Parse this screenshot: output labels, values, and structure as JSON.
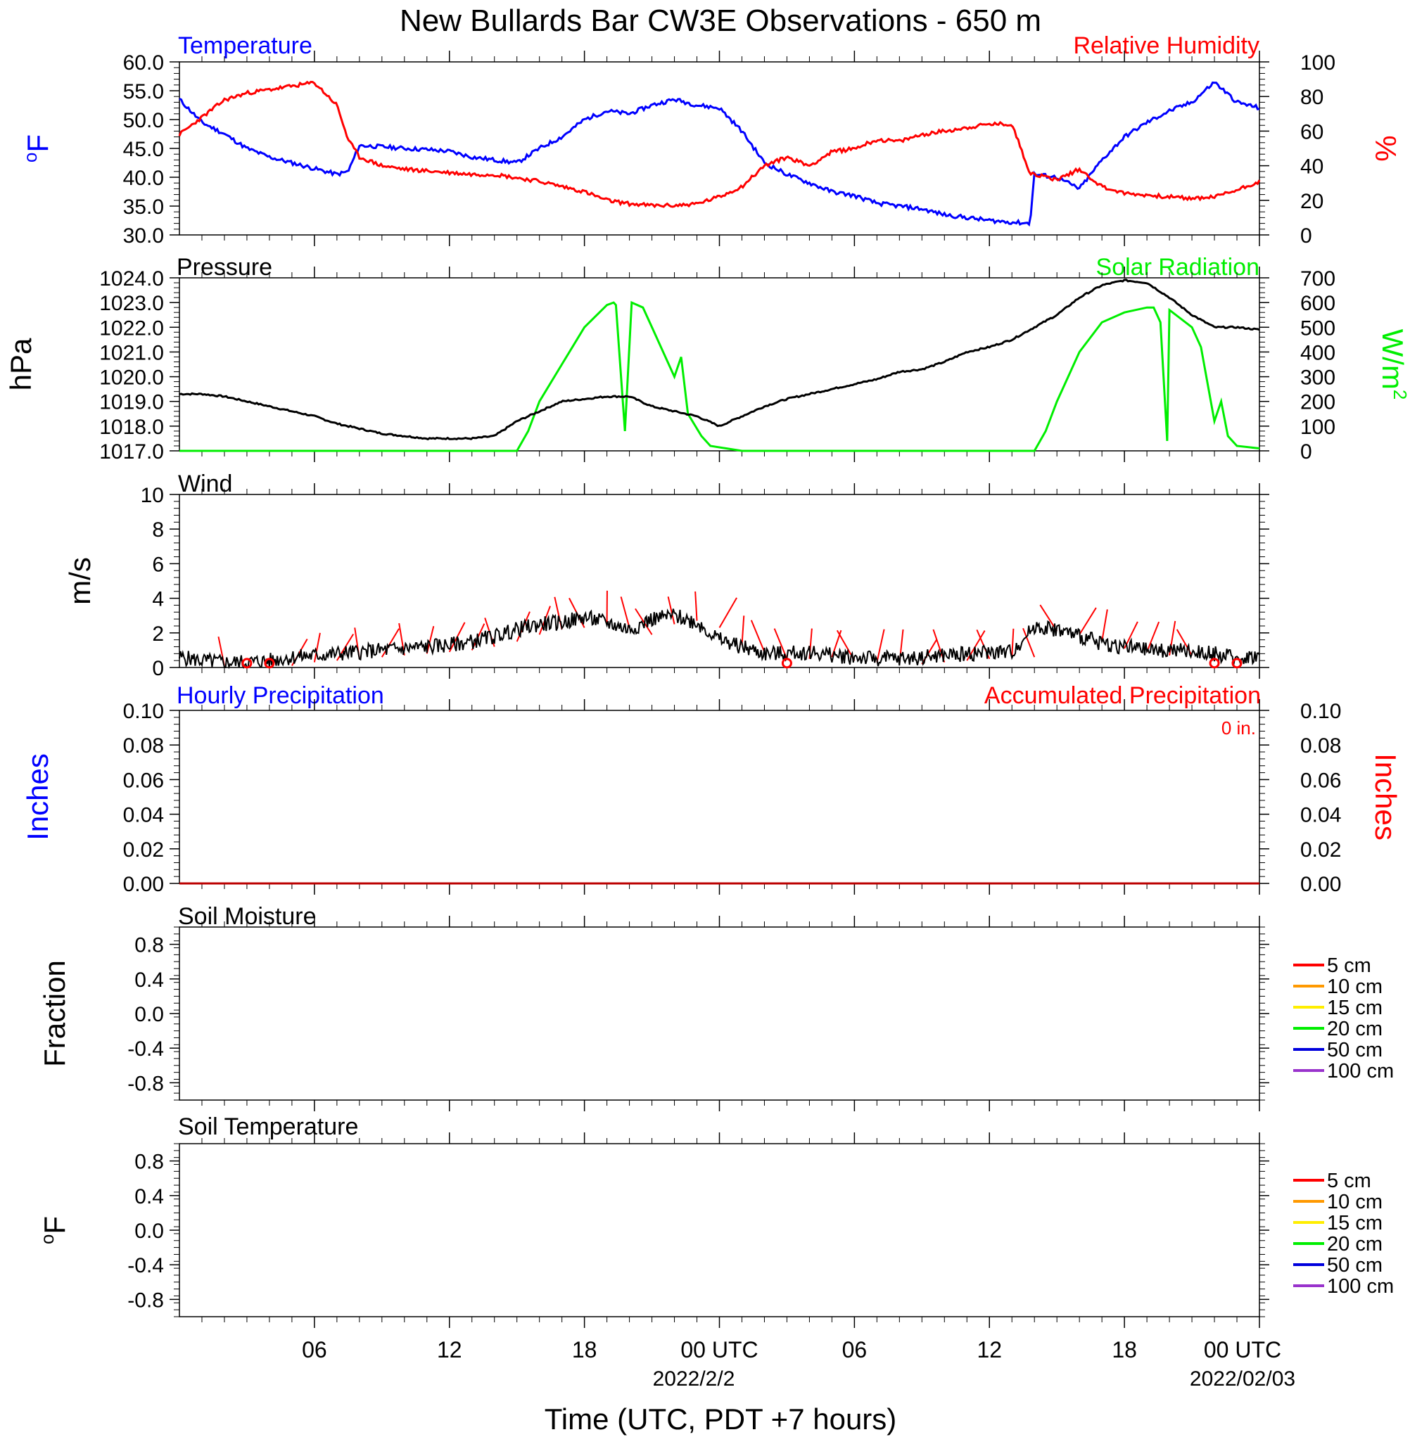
{
  "title": "New Bullards Bar CW3E Observations - 650 m",
  "x_axis": {
    "label": "Time (UTC, PDT +7 hours)",
    "ticks": [
      "06",
      "12",
      "18",
      "00 UTC",
      "06",
      "12",
      "18",
      "00 UTC"
    ],
    "dates": [
      "2022/2/2",
      "2022/02/03"
    ]
  },
  "colors": {
    "temperature": "#0000ff",
    "humidity": "#ff0000",
    "pressure": "#000000",
    "solar": "#00ee00",
    "wind": "#000000",
    "wind_barb": "#ff0000",
    "hourly_precip": "#0000ff",
    "accum_precip": "#ff0000",
    "soil_legend": [
      "#ff0000",
      "#ff9900",
      "#ffee00",
      "#00ee00",
      "#0000dd",
      "#9933cc"
    ]
  },
  "chart_data": [
    {
      "type": "line",
      "name": "temperature-humidity",
      "left_title": "Temperature",
      "right_title": "Relative Humidity",
      "ylabel_left": "oF",
      "ylabel_right": "%",
      "ylim_left": [
        30,
        60
      ],
      "ylim_right": [
        0,
        100
      ],
      "yticks_left": [
        "30.0",
        "35.0",
        "40.0",
        "45.0",
        "50.0",
        "55.0",
        "60.0"
      ],
      "yticks_right": [
        "0",
        "20",
        "40",
        "60",
        "80",
        "100"
      ],
      "x_hours": [
        0,
        1,
        2,
        3,
        4,
        5,
        6,
        7,
        7.5,
        8,
        9,
        10,
        11,
        12,
        13,
        14,
        15,
        16,
        17,
        18,
        19,
        20,
        21,
        22,
        23,
        24,
        25,
        26,
        27,
        28,
        29,
        30,
        31,
        32,
        33,
        34,
        35,
        36,
        37,
        37.8,
        38,
        39,
        40,
        41,
        42,
        43,
        44,
        45,
        46,
        47,
        48
      ],
      "series": [
        {
          "name": "Temperature",
          "axis": "left",
          "values": [
            53.5,
            49.5,
            47.5,
            45,
            43.5,
            42.5,
            41.5,
            40.5,
            41,
            45.5,
            45.3,
            45,
            44.8,
            44.5,
            43.5,
            43,
            42.5,
            45,
            47,
            50,
            51.5,
            51,
            52.5,
            53.5,
            52.5,
            52,
            48,
            42.5,
            40.5,
            39,
            37.5,
            36.8,
            35.5,
            35,
            34.5,
            33.5,
            33,
            32.5,
            32.2,
            32,
            40.5,
            40,
            38,
            43,
            47,
            49.5,
            51.5,
            53,
            56.5,
            53,
            52
          ]
        },
        {
          "name": "Relative Humidity",
          "axis": "right",
          "values": [
            58,
            68,
            78,
            82,
            84,
            86,
            88,
            75,
            55,
            45,
            40,
            38,
            37,
            36,
            35,
            35,
            33,
            31,
            28,
            25,
            20,
            18,
            17,
            17,
            18,
            22,
            28,
            40,
            45,
            40,
            48,
            50,
            55,
            54,
            58,
            60,
            62,
            64,
            64,
            36,
            35,
            32,
            38,
            28,
            24,
            23,
            22,
            21,
            22,
            26,
            31
          ]
        }
      ]
    },
    {
      "type": "line",
      "name": "pressure-solar",
      "left_title": "Pressure",
      "right_title": "Solar Radiation",
      "ylabel_left": "hPa",
      "ylabel_right": "W/m2",
      "ylim_left": [
        1017,
        1024
      ],
      "ylim_right": [
        0,
        700
      ],
      "yticks_left": [
        "1017.0",
        "1018.0",
        "1019.0",
        "1020.0",
        "1021.0",
        "1022.0",
        "1023.0",
        "1024.0"
      ],
      "yticks_right": [
        "0",
        "100",
        "200",
        "300",
        "400",
        "500",
        "600",
        "700"
      ],
      "pressure": {
        "x_hours": [
          0,
          1,
          2,
          3,
          4,
          5,
          6,
          7,
          8,
          9,
          10,
          11,
          12,
          13,
          14,
          15,
          16,
          17,
          18,
          19,
          20,
          21,
          22,
          23,
          24,
          25,
          26,
          27,
          28,
          29,
          30,
          31,
          32,
          33,
          34,
          35,
          36,
          37,
          38,
          39,
          40,
          41,
          42,
          43,
          44,
          45,
          46,
          47,
          48
        ],
        "values": [
          1019.3,
          1019.3,
          1019.2,
          1019,
          1018.8,
          1018.6,
          1018.4,
          1018.1,
          1017.9,
          1017.7,
          1017.6,
          1017.5,
          1017.5,
          1017.5,
          1017.6,
          1018.2,
          1018.6,
          1019,
          1019.1,
          1019.2,
          1019.2,
          1018.8,
          1018.6,
          1018.4,
          1018.0,
          1018.4,
          1018.8,
          1019.1,
          1019.3,
          1019.5,
          1019.7,
          1019.9,
          1020.2,
          1020.3,
          1020.6,
          1021,
          1021.2,
          1021.5,
          1022,
          1022.5,
          1023.2,
          1023.7,
          1023.9,
          1023.8,
          1023.2,
          1022.5,
          1022.0,
          1022,
          1021.9
        ]
      },
      "solar": {
        "x_hours": [
          0,
          1,
          14,
          15,
          15.5,
          16,
          17,
          18,
          19,
          19.3,
          19.4,
          19.8,
          20.1,
          20.6,
          21,
          22,
          22.3,
          22.6,
          23.2,
          23.6,
          24.3,
          25,
          38,
          38.5,
          39,
          40,
          41,
          42,
          43,
          43.3,
          43.6,
          43.9,
          44,
          45,
          45.4,
          46,
          46.3,
          46.6,
          47,
          48
        ],
        "values": [
          0,
          0,
          0,
          0,
          80,
          200,
          350,
          500,
          590,
          600,
          590,
          80,
          600,
          580,
          500,
          300,
          380,
          150,
          60,
          20,
          10,
          0,
          0,
          80,
          200,
          400,
          520,
          560,
          580,
          580,
          520,
          40,
          570,
          500,
          420,
          120,
          200,
          60,
          20,
          10
        ]
      }
    },
    {
      "type": "line",
      "name": "wind",
      "left_title": "Wind",
      "ylabel_left": "m/s",
      "ylim_left": [
        0,
        10
      ],
      "yticks_left": [
        "0",
        "2",
        "4",
        "6",
        "8",
        "10"
      ],
      "x_hours": [
        0,
        1,
        2,
        3,
        4,
        5,
        6,
        7,
        8,
        9,
        10,
        11,
        12,
        13,
        14,
        15,
        16,
        17,
        18,
        19,
        20,
        21,
        22,
        23,
        24,
        25,
        26,
        27,
        28,
        29,
        30,
        31,
        32,
        33,
        34,
        35,
        36,
        37,
        38,
        39,
        40,
        41,
        42,
        43,
        44,
        45,
        46,
        47,
        48
      ],
      "values": [
        0.6,
        0.4,
        0.3,
        0.3,
        0.4,
        0.6,
        0.7,
        0.8,
        0.9,
        1.0,
        1.1,
        1.2,
        1.3,
        1.5,
        1.8,
        2.2,
        2.5,
        2.6,
        2.9,
        2.6,
        2.2,
        2.8,
        3.0,
        2.6,
        1.6,
        1.2,
        0.8,
        0.8,
        0.9,
        0.7,
        0.6,
        0.5,
        0.5,
        0.6,
        0.7,
        0.8,
        0.9,
        0.9,
        2.4,
        2.2,
        1.8,
        1.4,
        1.2,
        1.0,
        1.0,
        0.9,
        0.8,
        0.5,
        0.7
      ],
      "calm_markers_hours": [
        3,
        4,
        27,
        46,
        47
      ],
      "barb_hours": [
        2,
        5,
        6,
        7,
        8,
        9,
        10,
        11,
        12,
        13,
        14,
        15,
        16,
        17,
        18,
        19,
        20,
        21,
        22,
        23,
        24,
        25,
        26,
        27,
        28,
        29,
        30,
        31,
        32,
        33,
        34,
        35,
        36,
        37,
        38,
        39,
        40,
        41,
        42,
        43,
        44,
        45
      ]
    },
    {
      "type": "line",
      "name": "precipitation",
      "left_title": "Hourly Precipitation",
      "right_title": "Accumulated Precipitation",
      "annotation": "0 in.",
      "ylabel_left": "Inches",
      "ylabel_right": "Inches",
      "ylim_left": [
        0,
        0.1
      ],
      "ylim_right": [
        0,
        0.1
      ],
      "yticks_left": [
        "0.00",
        "0.02",
        "0.04",
        "0.06",
        "0.08",
        "0.10"
      ],
      "yticks_right": [
        "0.00",
        "0.02",
        "0.04",
        "0.06",
        "0.08",
        "0.10"
      ],
      "x_hours": [
        0,
        48
      ],
      "series": [
        {
          "name": "Hourly Precipitation",
          "axis": "left",
          "values": [
            0,
            0
          ]
        },
        {
          "name": "Accumulated Precipitation",
          "axis": "right",
          "values": [
            0,
            0
          ]
        }
      ]
    },
    {
      "type": "line",
      "name": "soil-moisture",
      "left_title": "Soil Moisture",
      "ylabel_left": "Fraction",
      "ylim_left": [
        -1,
        1
      ],
      "yticks_left": [
        "-0.8",
        "-0.4",
        "0.0",
        "0.4",
        "0.8"
      ],
      "legend": [
        "5 cm",
        "10 cm",
        "15 cm",
        "20 cm",
        "50 cm",
        "100 cm"
      ],
      "legend_position": "right"
    },
    {
      "type": "line",
      "name": "soil-temperature",
      "left_title": "Soil Temperature",
      "ylabel_left": "oF",
      "ylim_left": [
        -1,
        1
      ],
      "yticks_left": [
        "-0.8",
        "-0.4",
        "0.0",
        "0.4",
        "0.8"
      ],
      "legend": [
        "5 cm",
        "10 cm",
        "15 cm",
        "20 cm",
        "50 cm",
        "100 cm"
      ],
      "legend_position": "right"
    }
  ]
}
